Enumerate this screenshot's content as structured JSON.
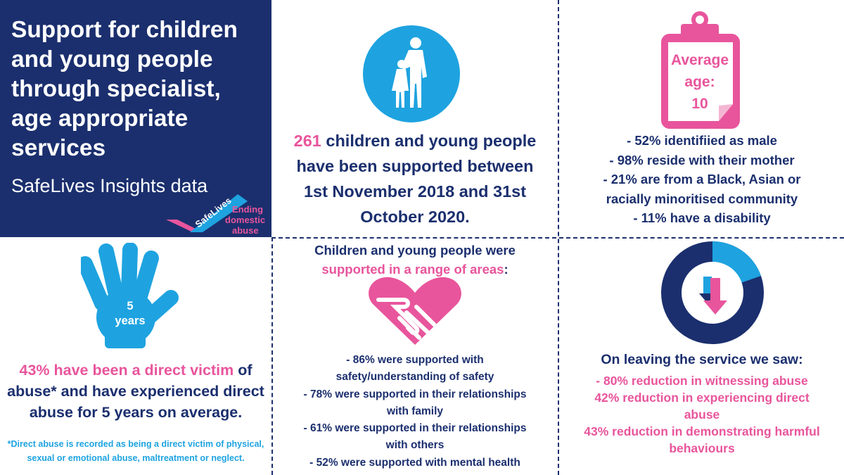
{
  "title": {
    "heading_lines": [
      "Support for children",
      "and young people",
      "through specialist,",
      "age appropriate",
      "services"
    ],
    "subtitle": "SafeLives Insights data",
    "logo": {
      "brand": "SafeLives",
      "tagline_lines": [
        "Ending",
        "domestic",
        "abuse"
      ]
    }
  },
  "colors": {
    "navy": "#1b2f6e",
    "pink": "#e8559c",
    "cyan": "#1ea3e0"
  },
  "supported": {
    "icon": "children-silhouette-icon",
    "number": "261",
    "line1_rest": " children and young people",
    "lines": [
      "have been supported between",
      "1st November 2018 and 31st",
      "October 2020."
    ]
  },
  "demographics": {
    "icon": "clipboard-icon",
    "age_lines": [
      "Average",
      "age:",
      "10"
    ],
    "items": [
      "- 52% identifiied as male",
      "- 98% reside with their mother",
      "- 21% are from a Black, Asian or",
      "racially minoritised community",
      "- 11% have a disability"
    ]
  },
  "abuse": {
    "icon": "hand-icon",
    "hand_lines": [
      "5",
      "years"
    ],
    "highlight": "43% have been a direct victim",
    "line1_rest": " of",
    "lines": [
      "abuse* and have experienced direct",
      "abuse for 5 years on average."
    ],
    "footnote_lines": [
      "*Direct abuse is recorded as being a direct victim of physical,",
      "sexual or emotional abuse, maltreatment or neglect."
    ]
  },
  "areas": {
    "icon": "heart-hands-icon",
    "heading_line1": "Children and young people were",
    "heading_highlight": "supported in a range of areas",
    "heading_end": ":",
    "items": [
      "- 86% were supported with",
      "safety/understanding of safety",
      "- 78% were supported in their relationships",
      "with family",
      "- 61% were supported in their relationships",
      "with others",
      "- 52% were supported with mental health"
    ]
  },
  "leaving": {
    "icon": "reduction-donut-icon",
    "heading": "On leaving the service we saw:",
    "items": [
      "- 80% reduction in witnessing abuse",
      "42% reduction in experiencing direct",
      "abuse",
      "43% reduction in demonstrating harmful",
      "behaviours"
    ]
  }
}
